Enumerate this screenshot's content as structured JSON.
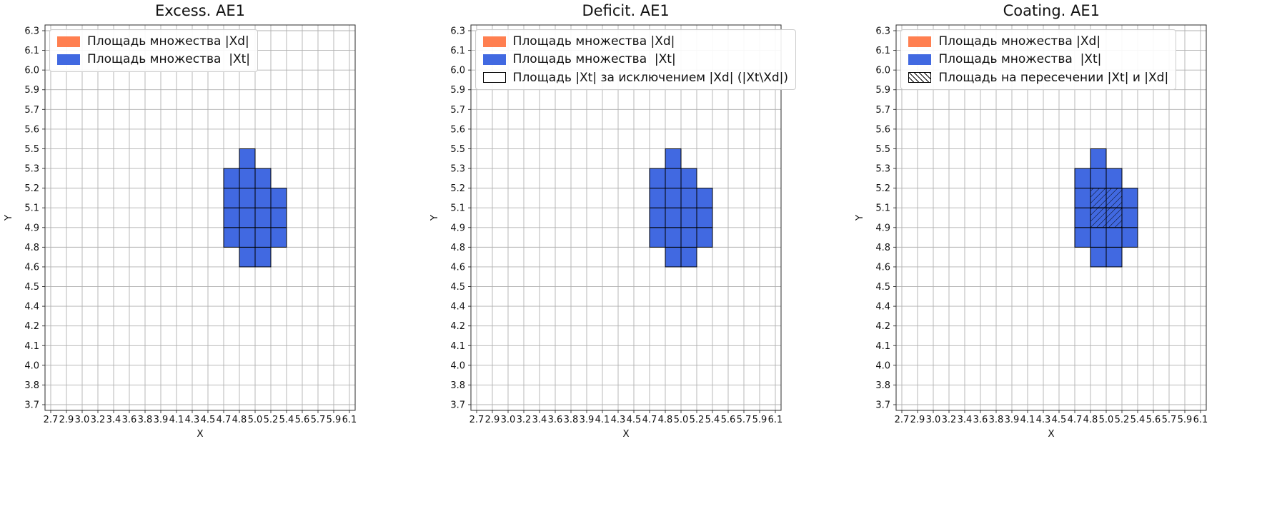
{
  "page": {
    "background": "#ffffff"
  },
  "colors": {
    "xd": "#ff7f50",
    "xt": "#4169e1",
    "cell_edge": "#000000",
    "grid_line": "#b0b0b0",
    "spine": "#2b2b2b",
    "legend_border": "#cccccc",
    "text": "#111111"
  },
  "chart_data": [
    {
      "type": "heatmap",
      "title": "Excess. AE1",
      "xlabel": "X",
      "ylabel": "Y",
      "grid": true,
      "legend_position": "upper left",
      "x_tick_labels": [
        "2.7",
        "2.9",
        "3.0",
        "3.2",
        "3.4",
        "3.6",
        "3.8",
        "3.9",
        "4.1",
        "4.3",
        "4.5",
        "4.7",
        "4.8",
        "5.0",
        "5.2",
        "5.4",
        "5.6",
        "5.7",
        "5.9",
        "6.1"
      ],
      "y_tick_labels": [
        "3.7",
        "3.8",
        "4.0",
        "4.1",
        "4.2",
        "4.4",
        "4.5",
        "4.6",
        "4.8",
        "4.9",
        "5.1",
        "5.2",
        "5.3",
        "5.5",
        "5.6",
        "5.7",
        "5.9",
        "6.0",
        "6.1",
        "6.3"
      ],
      "y_tick_order": "bottom-to-top",
      "series": [
        {
          "name": "Xt region",
          "color_key": "xt",
          "cells": [
            [
              12,
              7
            ],
            [
              13,
              7
            ],
            [
              11,
              8
            ],
            [
              12,
              8
            ],
            [
              13,
              8
            ],
            [
              14,
              8
            ],
            [
              11,
              9
            ],
            [
              12,
              9
            ],
            [
              13,
              9
            ],
            [
              14,
              9
            ],
            [
              11,
              10
            ],
            [
              12,
              10
            ],
            [
              13,
              10
            ],
            [
              14,
              10
            ],
            [
              11,
              11
            ],
            [
              12,
              11
            ],
            [
              13,
              11
            ],
            [
              12,
              12
            ]
          ]
        }
      ],
      "hatched_cells": [],
      "legend": {
        "entries": [
          {
            "swatch": "xd",
            "label": "Площадь множества |Xd|"
          },
          {
            "swatch": "xt",
            "label": "Площадь множества  |Xt|"
          }
        ]
      }
    },
    {
      "type": "heatmap",
      "title": "Deficit. AE1",
      "xlabel": "X",
      "ylabel": "Y",
      "grid": true,
      "legend_position": "upper left",
      "x_tick_labels": [
        "2.7",
        "2.9",
        "3.0",
        "3.2",
        "3.4",
        "3.6",
        "3.8",
        "3.9",
        "4.1",
        "4.3",
        "4.5",
        "4.7",
        "4.8",
        "5.0",
        "5.2",
        "5.4",
        "5.6",
        "5.7",
        "5.9",
        "6.1"
      ],
      "y_tick_labels": [
        "3.7",
        "3.8",
        "4.0",
        "4.1",
        "4.2",
        "4.4",
        "4.5",
        "4.6",
        "4.8",
        "4.9",
        "5.1",
        "5.2",
        "5.3",
        "5.5",
        "5.6",
        "5.7",
        "5.9",
        "6.0",
        "6.1",
        "6.3"
      ],
      "y_tick_order": "bottom-to-top",
      "series": [
        {
          "name": "Xt region",
          "color_key": "xt",
          "cells": [
            [
              12,
              7
            ],
            [
              13,
              7
            ],
            [
              11,
              8
            ],
            [
              12,
              8
            ],
            [
              13,
              8
            ],
            [
              14,
              8
            ],
            [
              11,
              9
            ],
            [
              12,
              9
            ],
            [
              13,
              9
            ],
            [
              14,
              9
            ],
            [
              11,
              10
            ],
            [
              12,
              10
            ],
            [
              13,
              10
            ],
            [
              14,
              10
            ],
            [
              11,
              11
            ],
            [
              12,
              11
            ],
            [
              13,
              11
            ],
            [
              12,
              12
            ]
          ]
        }
      ],
      "hatched_cells": [],
      "legend": {
        "entries": [
          {
            "swatch": "xd",
            "label": "Площадь множества |Xd|"
          },
          {
            "swatch": "xt",
            "label": "Площадь множества  |Xt|"
          },
          {
            "swatch": "empty",
            "label": "Площадь |Xt| за исключением |Xd| (|Xt\\Xd|)"
          }
        ]
      }
    },
    {
      "type": "heatmap",
      "title": "Coating. AE1",
      "xlabel": "X",
      "ylabel": "Y",
      "grid": true,
      "legend_position": "upper left",
      "x_tick_labels": [
        "2.7",
        "2.9",
        "3.0",
        "3.2",
        "3.4",
        "3.6",
        "3.8",
        "3.9",
        "4.1",
        "4.3",
        "4.5",
        "4.7",
        "4.8",
        "5.0",
        "5.2",
        "5.4",
        "5.6",
        "5.7",
        "5.9",
        "6.1"
      ],
      "y_tick_labels": [
        "3.7",
        "3.8",
        "4.0",
        "4.1",
        "4.2",
        "4.4",
        "4.5",
        "4.6",
        "4.8",
        "4.9",
        "5.1",
        "5.2",
        "5.3",
        "5.5",
        "5.6",
        "5.7",
        "5.9",
        "6.0",
        "6.1",
        "6.3"
      ],
      "y_tick_order": "bottom-to-top",
      "series": [
        {
          "name": "Xt region",
          "color_key": "xt",
          "cells": [
            [
              12,
              7
            ],
            [
              13,
              7
            ],
            [
              11,
              8
            ],
            [
              12,
              8
            ],
            [
              13,
              8
            ],
            [
              14,
              8
            ],
            [
              11,
              9
            ],
            [
              12,
              9
            ],
            [
              13,
              9
            ],
            [
              14,
              9
            ],
            [
              11,
              10
            ],
            [
              12,
              10
            ],
            [
              13,
              10
            ],
            [
              14,
              10
            ],
            [
              11,
              11
            ],
            [
              12,
              11
            ],
            [
              13,
              11
            ],
            [
              12,
              12
            ]
          ]
        }
      ],
      "hatched_cells": [
        [
          12,
          9
        ],
        [
          13,
          9
        ],
        [
          12,
          10
        ],
        [
          13,
          10
        ]
      ],
      "legend": {
        "entries": [
          {
            "swatch": "xd",
            "label": "Площадь множества |Xd|"
          },
          {
            "swatch": "xt",
            "label": "Площадь множества  |Xt|"
          },
          {
            "swatch": "hatch",
            "label": "Площадь на пересечении |Xt| и |Xd|"
          }
        ]
      }
    }
  ]
}
